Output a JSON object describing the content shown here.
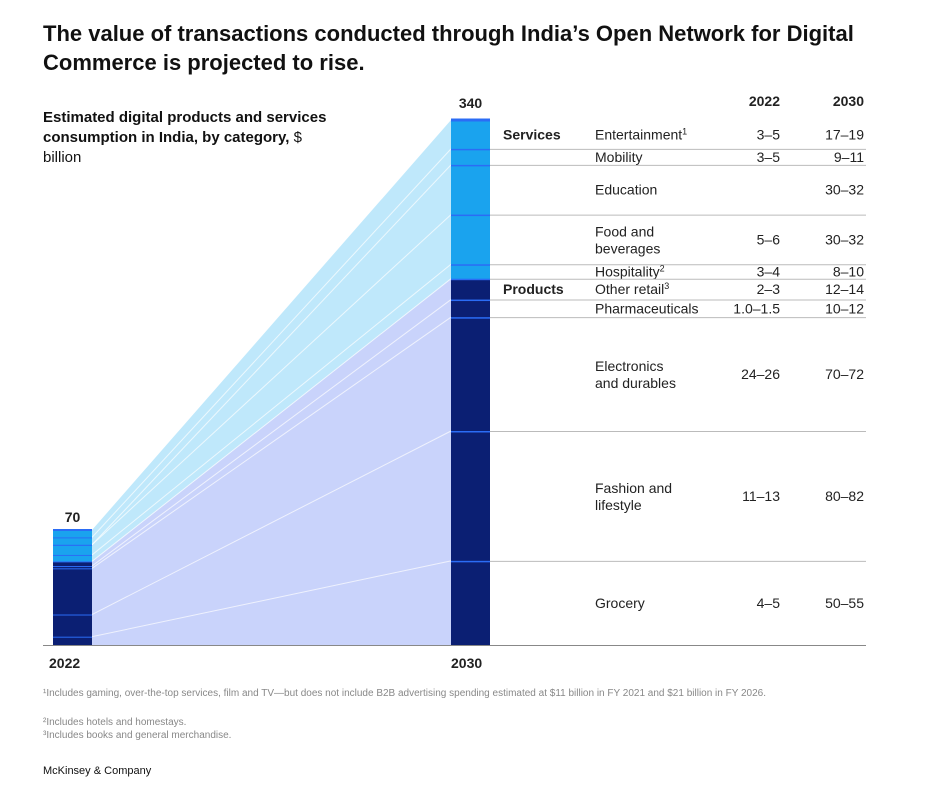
{
  "title": "The value of transactions conducted through India’s Open Network for Digital Commerce is projected to rise.",
  "subtitle_bold": "Estimated digital products and services consumption in India, by category,",
  "subtitle_unit": "$ billion",
  "colors": {
    "services_bar": "#1aa3ee",
    "products_bar": "#0b1f73",
    "separator": "#2b6cf5",
    "services_band": "#bfe8fb",
    "products_band": "#c9d3fb",
    "grid": "#bbbbbb"
  },
  "chart_data": {
    "type": "bar",
    "x": [
      "2022",
      "2030"
    ],
    "totals": {
      "2022": "70",
      "2030": "340"
    },
    "columns": {
      "year1": "2022",
      "year2": "2030"
    },
    "groups": [
      {
        "name": "Services",
        "categories": [
          {
            "name": "Entertainment",
            "sup": "1",
            "v2022": "3–5",
            "v2030": "17–19",
            "mid2022": 4,
            "mid2030": 18
          },
          {
            "name": "Mobility",
            "sup": "",
            "v2022": "3–5",
            "v2030": "9–11",
            "mid2022": 4,
            "mid2030": 10
          },
          {
            "name": "Education",
            "sup": "",
            "v2022": "",
            "v2030": "30–32",
            "mid2022": 0,
            "mid2030": 31
          },
          {
            "name": "Food and beverages",
            "sup": "",
            "v2022": "5–6",
            "v2030": "30–32",
            "mid2022": 5.5,
            "mid2030": 31
          },
          {
            "name": "Hospitality",
            "sup": "2",
            "v2022": "3–4",
            "v2030": "8–10",
            "mid2022": 3.5,
            "mid2030": 9
          }
        ]
      },
      {
        "name": "Products",
        "categories": [
          {
            "name": "Other retail",
            "sup": "3",
            "v2022": "2–3",
            "v2030": "12–14",
            "mid2022": 2.5,
            "mid2030": 13
          },
          {
            "name": "Pharmaceuticals",
            "sup": "",
            "v2022": "1.0–1.5",
            "v2030": "10–12",
            "mid2022": 1.25,
            "mid2030": 11
          },
          {
            "name": "Electronics and durables",
            "sup": "",
            "v2022": "24–26",
            "v2030": "70–72",
            "mid2022": 25,
            "mid2030": 71
          },
          {
            "name": "Fashion and lifestyle",
            "sup": "",
            "v2022": "11–13",
            "v2030": "80–82",
            "mid2022": 12,
            "mid2030": 81
          },
          {
            "name": "Grocery",
            "sup": "",
            "v2022": "4–5",
            "v2030": "50–55",
            "mid2022": 4.5,
            "mid2030": 52.5
          }
        ]
      }
    ]
  },
  "footnotes": [
    "¹Includes gaming, over-the-top services, film and TV—but does not include B2B advertising spending estimated at $11 billion in FY 2021 and $21 billion in FY 2026.",
    "²Includes hotels and homestays.",
    "³Includes books and general merchandise."
  ],
  "brand": "McKinsey & Company"
}
